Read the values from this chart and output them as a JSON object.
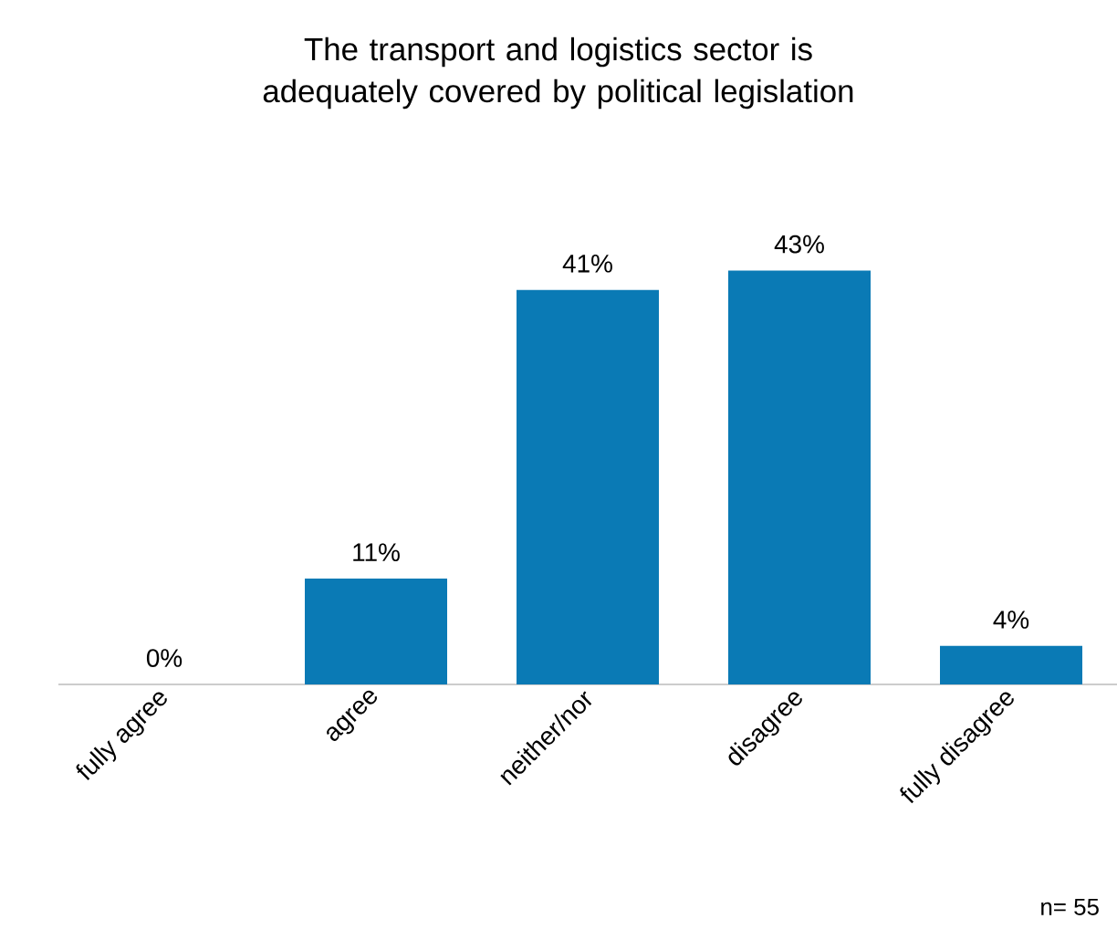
{
  "chart_data": {
    "type": "bar",
    "title": "The transport and logistics sector is adequately covered by political legislation",
    "categories": [
      "fully agree",
      "agree",
      "neither/nor",
      "disagree",
      "fully disagree"
    ],
    "values": [
      0,
      11,
      41,
      43,
      4
    ],
    "value_labels": [
      "0%",
      "11%",
      "41%",
      "43%",
      "4%"
    ],
    "color": "#0a7ab5",
    "tick_labels": "x",
    "annotations": [
      "n= 55"
    ]
  }
}
